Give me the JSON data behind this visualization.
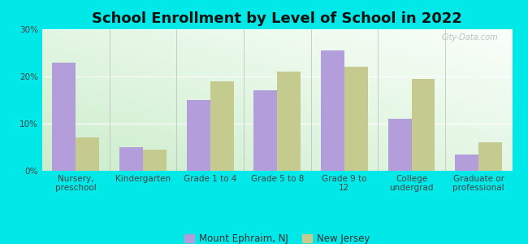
{
  "title": "School Enrollment by Level of School in 2022",
  "categories": [
    "Nursery,\npreschool",
    "Kindergarten",
    "Grade 1 to 4",
    "Grade 5 to 8",
    "Grade 9 to\n12",
    "College\nundergrad",
    "Graduate or\nprofessional"
  ],
  "mount_ephraim": [
    23.0,
    5.0,
    15.0,
    17.0,
    25.5,
    11.0,
    3.5
  ],
  "new_jersey": [
    7.0,
    4.5,
    19.0,
    21.0,
    22.0,
    19.5,
    6.0
  ],
  "bar_color_me": "#b39ddb",
  "bar_color_nj": "#c5ca8e",
  "background_outer": "#00e8e8",
  "ylim": [
    0,
    30
  ],
  "yticks": [
    0,
    10,
    20,
    30
  ],
  "ytick_labels": [
    "0%",
    "10%",
    "20%",
    "30%"
  ],
  "legend_me": "Mount Ephraim, NJ",
  "legend_nj": "New Jersey",
  "title_fontsize": 13,
  "tick_fontsize": 7.5,
  "legend_fontsize": 8.5,
  "bar_width": 0.35,
  "watermark_text": "City-Data.com"
}
